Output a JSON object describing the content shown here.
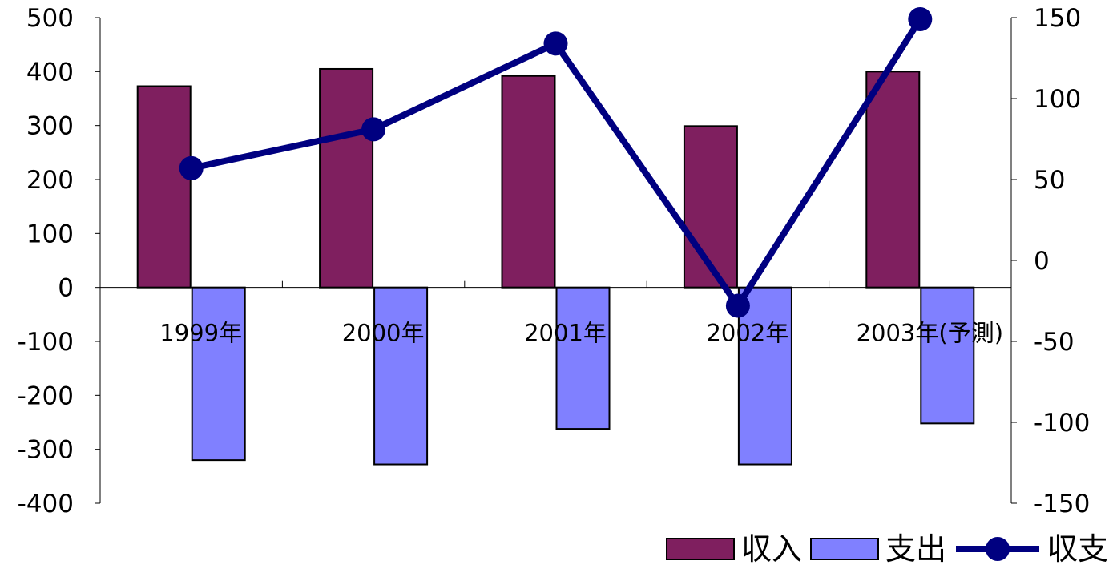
{
  "chart_data": {
    "type": "bar",
    "categories": [
      "1999年",
      "2000年",
      "2001年",
      "2002年",
      "2003年(予測)"
    ],
    "series": [
      {
        "name": "収入",
        "type": "bar",
        "axis": "left",
        "color": "#7f1f5f",
        "values": [
          373,
          405,
          392,
          299,
          400
        ]
      },
      {
        "name": "支出",
        "type": "bar",
        "axis": "left",
        "color": "#8080ff",
        "values": [
          -320,
          -328,
          -262,
          -328,
          -252
        ]
      },
      {
        "name": "収支",
        "type": "line",
        "axis": "right",
        "color": "#000080",
        "values": [
          57,
          81,
          134,
          -28,
          149
        ]
      }
    ],
    "left_axis": {
      "min": -400,
      "max": 500,
      "ticks": [
        500,
        400,
        300,
        200,
        100,
        0,
        -100,
        -200,
        -300,
        -400
      ],
      "tick_labels": [
        "500",
        "400",
        "300",
        "200",
        "100",
        "0",
        "-100",
        "-200",
        "-300",
        "-400"
      ]
    },
    "right_axis": {
      "min": -150,
      "max": 150,
      "ticks": [
        150,
        100,
        50,
        0,
        -50,
        -100,
        -150
      ],
      "tick_labels": [
        "150",
        "100",
        "50",
        "0",
        "-50",
        "-100",
        "-150"
      ]
    },
    "grid": false,
    "legend_position": "bottom-right",
    "title": "",
    "xlabel": "",
    "ylabel": ""
  }
}
